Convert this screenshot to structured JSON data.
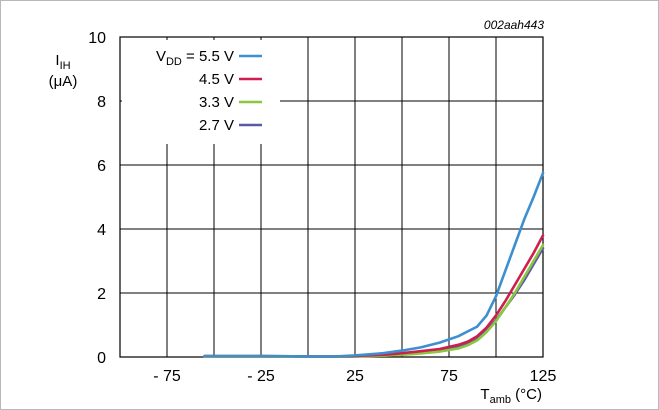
{
  "figure_code": "002aah443",
  "chart_data": {
    "type": "line",
    "xlabel": {
      "main": "T",
      "sub": "amb",
      "unit": " (°C)"
    },
    "ylabel": {
      "main": "I",
      "sub": "IH",
      "unit": "(μA)"
    },
    "xlim": [
      -100,
      125
    ],
    "ylim": [
      0,
      10
    ],
    "x_ticks": [
      -75,
      -25,
      25,
      75,
      125
    ],
    "x_tick_labels": [
      "- 75",
      "- 25",
      "25",
      "75",
      "125"
    ],
    "y_ticks": [
      0,
      2,
      4,
      6,
      8,
      10
    ],
    "y_tick_labels": [
      "0",
      "2",
      "4",
      "6",
      "8",
      "10"
    ],
    "x_grid": [
      -75,
      -50,
      -25,
      0,
      25,
      50,
      75,
      100,
      125
    ],
    "y_grid": [
      0,
      2,
      4,
      6,
      8,
      10
    ],
    "grid": true,
    "legend": {
      "placement": "top-left",
      "prefix_main": "V",
      "prefix_sub": "DD",
      "prefix_suffix": " = "
    },
    "series": [
      {
        "name": "5.5 V",
        "color": "#3d8fcf",
        "x": [
          -55,
          -25,
          0,
          15,
          25,
          40,
          50,
          60,
          70,
          80,
          85,
          90,
          95,
          100,
          105,
          110,
          115,
          120,
          125
        ],
        "y": [
          0.03,
          0.03,
          0.02,
          0.02,
          0.05,
          0.12,
          0.2,
          0.3,
          0.45,
          0.65,
          0.8,
          0.95,
          1.3,
          1.9,
          2.7,
          3.5,
          4.3,
          5.0,
          5.75
        ]
      },
      {
        "name": "4.5 V",
        "color": "#cc1f4f",
        "x": [
          -55,
          -25,
          0,
          15,
          25,
          40,
          50,
          60,
          70,
          80,
          85,
          90,
          95,
          100,
          105,
          110,
          115,
          120,
          125
        ],
        "y": [
          0.03,
          0.03,
          0.02,
          0.02,
          0.03,
          0.07,
          0.12,
          0.18,
          0.25,
          0.38,
          0.48,
          0.65,
          0.92,
          1.3,
          1.75,
          2.25,
          2.75,
          3.25,
          3.8
        ]
      },
      {
        "name": "3.3 V",
        "color": "#8cc63e",
        "x": [
          -55,
          -25,
          0,
          15,
          25,
          40,
          50,
          60,
          70,
          80,
          85,
          90,
          95,
          100,
          105,
          110,
          115,
          120,
          125
        ],
        "y": [
          0.02,
          0.02,
          0.01,
          0.01,
          0.02,
          0.04,
          0.07,
          0.11,
          0.17,
          0.27,
          0.37,
          0.52,
          0.78,
          1.12,
          1.55,
          2.0,
          2.5,
          3.0,
          3.5
        ]
      },
      {
        "name": "2.7 V",
        "color": "#5a5aa8",
        "x": [
          -55,
          -25,
          0,
          15,
          25,
          40,
          50,
          60,
          70,
          80,
          85,
          90,
          95,
          100,
          105,
          110,
          115,
          120,
          125
        ],
        "y": [
          0.02,
          0.02,
          0.01,
          0.01,
          0.02,
          0.05,
          0.09,
          0.14,
          0.2,
          0.31,
          0.41,
          0.56,
          0.82,
          1.15,
          1.55,
          1.95,
          2.4,
          2.9,
          3.4
        ]
      }
    ]
  }
}
